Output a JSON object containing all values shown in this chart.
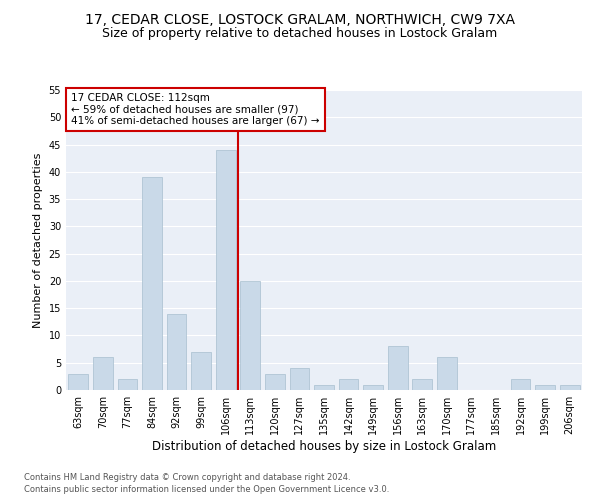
{
  "title": "17, CEDAR CLOSE, LOSTOCK GRALAM, NORTHWICH, CW9 7XA",
  "subtitle": "Size of property relative to detached houses in Lostock Gralam",
  "xlabel": "Distribution of detached houses by size in Lostock Gralam",
  "ylabel": "Number of detached properties",
  "categories": [
    "63sqm",
    "70sqm",
    "77sqm",
    "84sqm",
    "92sqm",
    "99sqm",
    "106sqm",
    "113sqm",
    "120sqm",
    "127sqm",
    "135sqm",
    "142sqm",
    "149sqm",
    "156sqm",
    "163sqm",
    "170sqm",
    "177sqm",
    "185sqm",
    "192sqm",
    "199sqm",
    "206sqm"
  ],
  "values": [
    3,
    6,
    2,
    39,
    14,
    7,
    44,
    20,
    3,
    4,
    1,
    2,
    1,
    8,
    2,
    6,
    0,
    0,
    2,
    1,
    1
  ],
  "bar_color": "#c9d9e8",
  "bar_edgecolor": "#a8bfce",
  "bar_linewidth": 0.5,
  "vline_color": "#cc0000",
  "vline_x_index": 7,
  "ylim": [
    0,
    55
  ],
  "yticks": [
    0,
    5,
    10,
    15,
    20,
    25,
    30,
    35,
    40,
    45,
    50,
    55
  ],
  "annotation_text": "17 CEDAR CLOSE: 112sqm\n← 59% of detached houses are smaller (97)\n41% of semi-detached houses are larger (67) →",
  "annotation_box_color": "#ffffff",
  "annotation_box_edgecolor": "#cc0000",
  "annotation_fontsize": 7.5,
  "footer1": "Contains HM Land Registry data © Crown copyright and database right 2024.",
  "footer2": "Contains public sector information licensed under the Open Government Licence v3.0.",
  "background_color": "#eaeff7",
  "grid_color": "#ffffff",
  "title_fontsize": 10,
  "subtitle_fontsize": 9,
  "xlabel_fontsize": 8.5,
  "ylabel_fontsize": 8,
  "tick_fontsize": 7,
  "footer_fontsize": 6,
  "footer_color": "#555555"
}
